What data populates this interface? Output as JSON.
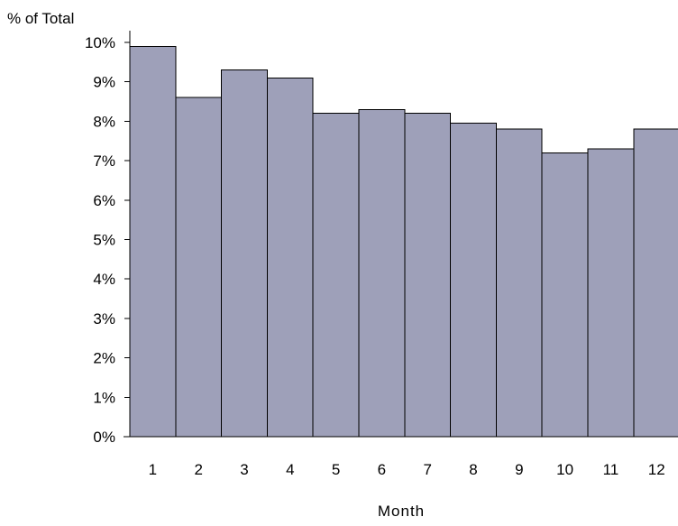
{
  "chart_data": {
    "type": "bar",
    "title": "",
    "ylabel": "% of Total",
    "xlabel": "Month",
    "categories": [
      "1",
      "2",
      "3",
      "4",
      "5",
      "6",
      "7",
      "8",
      "9",
      "10",
      "11",
      "12"
    ],
    "values": [
      9.9,
      8.6,
      9.3,
      9.1,
      8.2,
      8.3,
      8.2,
      7.95,
      7.8,
      7.2,
      7.3,
      7.8
    ],
    "ylim": [
      0,
      10
    ],
    "yticks": [
      "0%",
      "1%",
      "2%",
      "3%",
      "4%",
      "5%",
      "6%",
      "7%",
      "8%",
      "9%",
      "10%"
    ],
    "bar_color": "#9ea0b9",
    "grid": false,
    "legend": "none"
  }
}
